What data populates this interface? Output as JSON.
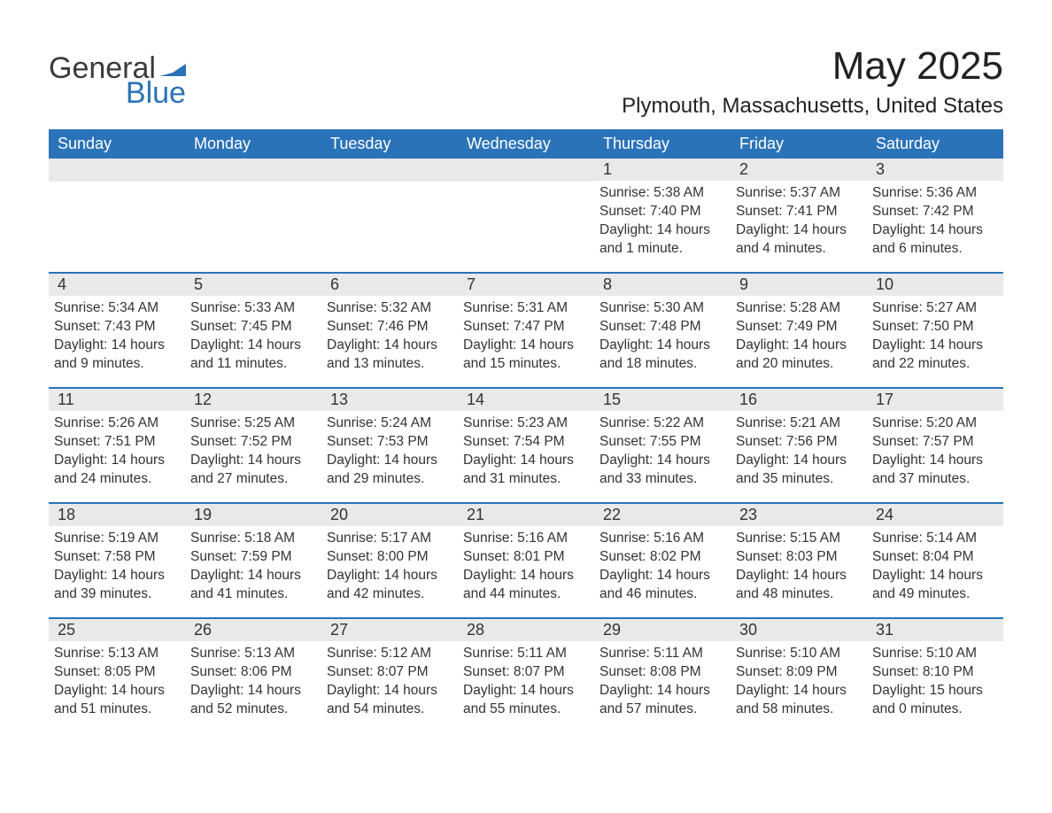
{
  "logo": {
    "text1": "General",
    "text2": "Blue"
  },
  "title": "May 2025",
  "location": "Plymouth, Massachusetts, United States",
  "colors": {
    "header_bg": "#2a73b8",
    "header_text": "#ffffff",
    "daynum_bg": "#e9e9e9",
    "border": "#2a73b8",
    "body_text": "#333333",
    "page_bg": "#ffffff"
  },
  "day_headers": [
    "Sunday",
    "Monday",
    "Tuesday",
    "Wednesday",
    "Thursday",
    "Friday",
    "Saturday"
  ],
  "weeks": [
    [
      {
        "n": "",
        "sr": "",
        "ss": "",
        "dl": ""
      },
      {
        "n": "",
        "sr": "",
        "ss": "",
        "dl": ""
      },
      {
        "n": "",
        "sr": "",
        "ss": "",
        "dl": ""
      },
      {
        "n": "",
        "sr": "",
        "ss": "",
        "dl": ""
      },
      {
        "n": "1",
        "sr": "Sunrise: 5:38 AM",
        "ss": "Sunset: 7:40 PM",
        "dl": "Daylight: 14 hours and 1 minute."
      },
      {
        "n": "2",
        "sr": "Sunrise: 5:37 AM",
        "ss": "Sunset: 7:41 PM",
        "dl": "Daylight: 14 hours and 4 minutes."
      },
      {
        "n": "3",
        "sr": "Sunrise: 5:36 AM",
        "ss": "Sunset: 7:42 PM",
        "dl": "Daylight: 14 hours and 6 minutes."
      }
    ],
    [
      {
        "n": "4",
        "sr": "Sunrise: 5:34 AM",
        "ss": "Sunset: 7:43 PM",
        "dl": "Daylight: 14 hours and 9 minutes."
      },
      {
        "n": "5",
        "sr": "Sunrise: 5:33 AM",
        "ss": "Sunset: 7:45 PM",
        "dl": "Daylight: 14 hours and 11 minutes."
      },
      {
        "n": "6",
        "sr": "Sunrise: 5:32 AM",
        "ss": "Sunset: 7:46 PM",
        "dl": "Daylight: 14 hours and 13 minutes."
      },
      {
        "n": "7",
        "sr": "Sunrise: 5:31 AM",
        "ss": "Sunset: 7:47 PM",
        "dl": "Daylight: 14 hours and 15 minutes."
      },
      {
        "n": "8",
        "sr": "Sunrise: 5:30 AM",
        "ss": "Sunset: 7:48 PM",
        "dl": "Daylight: 14 hours and 18 minutes."
      },
      {
        "n": "9",
        "sr": "Sunrise: 5:28 AM",
        "ss": "Sunset: 7:49 PM",
        "dl": "Daylight: 14 hours and 20 minutes."
      },
      {
        "n": "10",
        "sr": "Sunrise: 5:27 AM",
        "ss": "Sunset: 7:50 PM",
        "dl": "Daylight: 14 hours and 22 minutes."
      }
    ],
    [
      {
        "n": "11",
        "sr": "Sunrise: 5:26 AM",
        "ss": "Sunset: 7:51 PM",
        "dl": "Daylight: 14 hours and 24 minutes."
      },
      {
        "n": "12",
        "sr": "Sunrise: 5:25 AM",
        "ss": "Sunset: 7:52 PM",
        "dl": "Daylight: 14 hours and 27 minutes."
      },
      {
        "n": "13",
        "sr": "Sunrise: 5:24 AM",
        "ss": "Sunset: 7:53 PM",
        "dl": "Daylight: 14 hours and 29 minutes."
      },
      {
        "n": "14",
        "sr": "Sunrise: 5:23 AM",
        "ss": "Sunset: 7:54 PM",
        "dl": "Daylight: 14 hours and 31 minutes."
      },
      {
        "n": "15",
        "sr": "Sunrise: 5:22 AM",
        "ss": "Sunset: 7:55 PM",
        "dl": "Daylight: 14 hours and 33 minutes."
      },
      {
        "n": "16",
        "sr": "Sunrise: 5:21 AM",
        "ss": "Sunset: 7:56 PM",
        "dl": "Daylight: 14 hours and 35 minutes."
      },
      {
        "n": "17",
        "sr": "Sunrise: 5:20 AM",
        "ss": "Sunset: 7:57 PM",
        "dl": "Daylight: 14 hours and 37 minutes."
      }
    ],
    [
      {
        "n": "18",
        "sr": "Sunrise: 5:19 AM",
        "ss": "Sunset: 7:58 PM",
        "dl": "Daylight: 14 hours and 39 minutes."
      },
      {
        "n": "19",
        "sr": "Sunrise: 5:18 AM",
        "ss": "Sunset: 7:59 PM",
        "dl": "Daylight: 14 hours and 41 minutes."
      },
      {
        "n": "20",
        "sr": "Sunrise: 5:17 AM",
        "ss": "Sunset: 8:00 PM",
        "dl": "Daylight: 14 hours and 42 minutes."
      },
      {
        "n": "21",
        "sr": "Sunrise: 5:16 AM",
        "ss": "Sunset: 8:01 PM",
        "dl": "Daylight: 14 hours and 44 minutes."
      },
      {
        "n": "22",
        "sr": "Sunrise: 5:16 AM",
        "ss": "Sunset: 8:02 PM",
        "dl": "Daylight: 14 hours and 46 minutes."
      },
      {
        "n": "23",
        "sr": "Sunrise: 5:15 AM",
        "ss": "Sunset: 8:03 PM",
        "dl": "Daylight: 14 hours and 48 minutes."
      },
      {
        "n": "24",
        "sr": "Sunrise: 5:14 AM",
        "ss": "Sunset: 8:04 PM",
        "dl": "Daylight: 14 hours and 49 minutes."
      }
    ],
    [
      {
        "n": "25",
        "sr": "Sunrise: 5:13 AM",
        "ss": "Sunset: 8:05 PM",
        "dl": "Daylight: 14 hours and 51 minutes."
      },
      {
        "n": "26",
        "sr": "Sunrise: 5:13 AM",
        "ss": "Sunset: 8:06 PM",
        "dl": "Daylight: 14 hours and 52 minutes."
      },
      {
        "n": "27",
        "sr": "Sunrise: 5:12 AM",
        "ss": "Sunset: 8:07 PM",
        "dl": "Daylight: 14 hours and 54 minutes."
      },
      {
        "n": "28",
        "sr": "Sunrise: 5:11 AM",
        "ss": "Sunset: 8:07 PM",
        "dl": "Daylight: 14 hours and 55 minutes."
      },
      {
        "n": "29",
        "sr": "Sunrise: 5:11 AM",
        "ss": "Sunset: 8:08 PM",
        "dl": "Daylight: 14 hours and 57 minutes."
      },
      {
        "n": "30",
        "sr": "Sunrise: 5:10 AM",
        "ss": "Sunset: 8:09 PM",
        "dl": "Daylight: 14 hours and 58 minutes."
      },
      {
        "n": "31",
        "sr": "Sunrise: 5:10 AM",
        "ss": "Sunset: 8:10 PM",
        "dl": "Daylight: 15 hours and 0 minutes."
      }
    ]
  ]
}
